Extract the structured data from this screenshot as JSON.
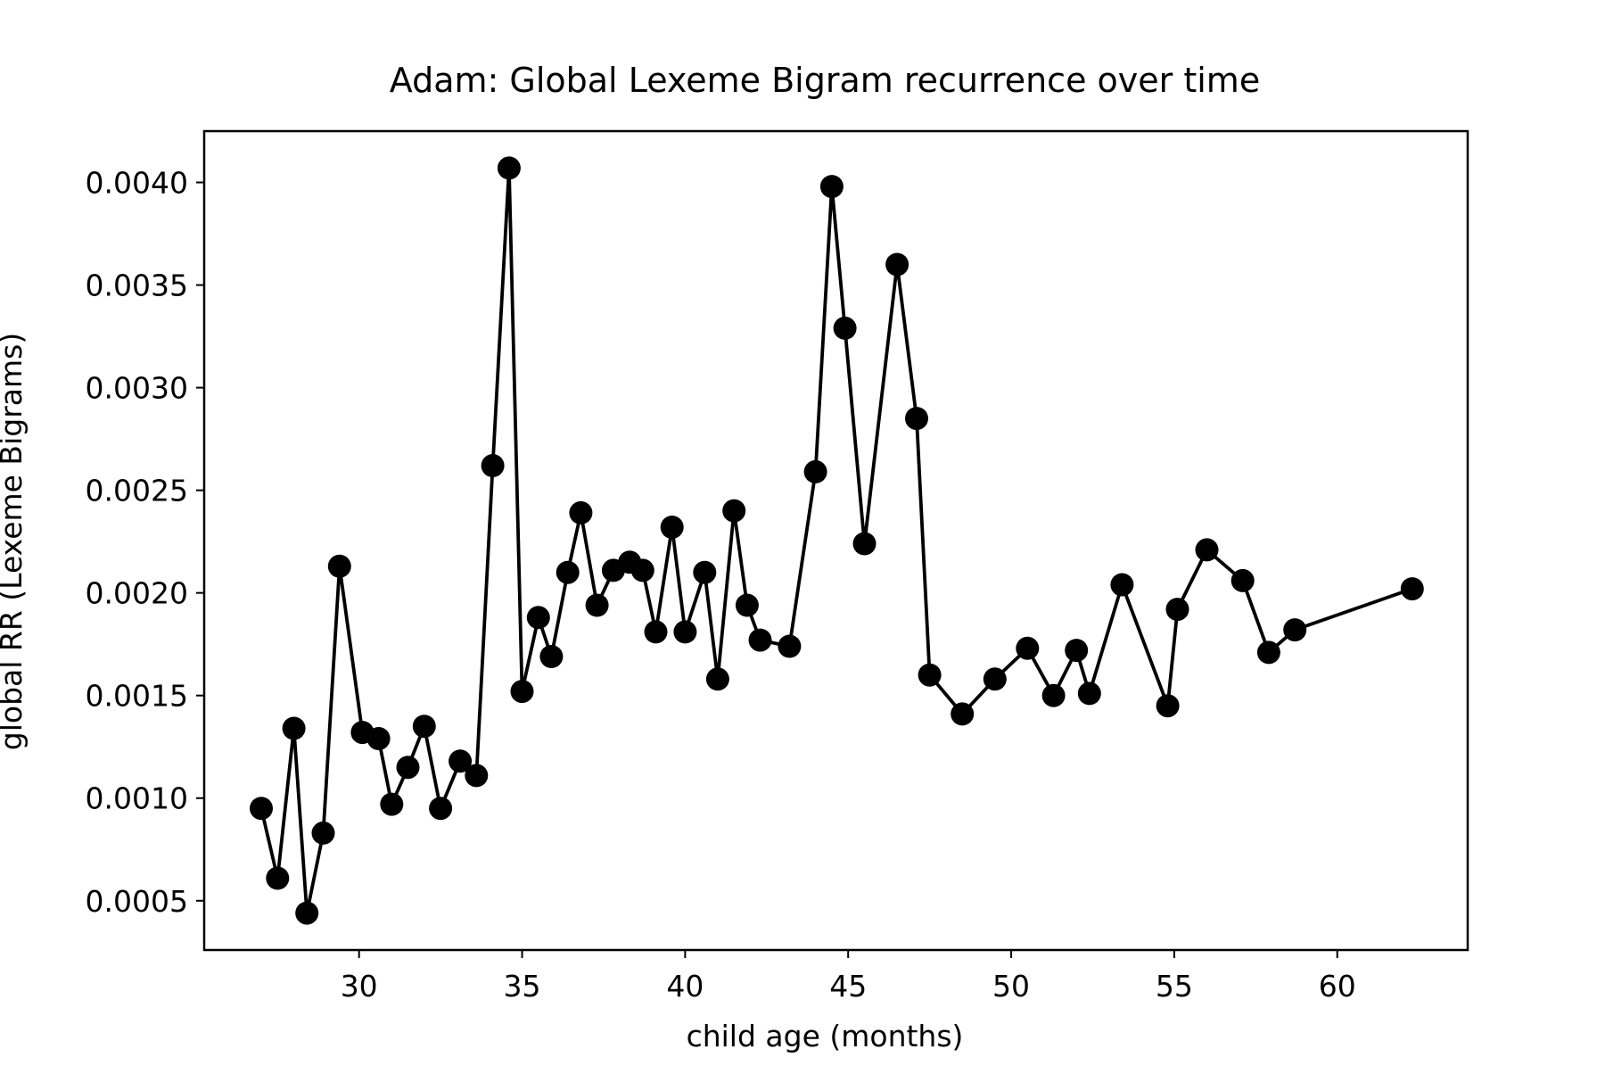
{
  "chart_data": {
    "type": "line",
    "title": "Adam: Global Lexeme Bigram recurrence over time",
    "xlabel": "child age (months)",
    "ylabel": "global RR (Lexeme Bigrams)",
    "xlim": [
      25.25,
      64.0
    ],
    "ylim": [
      0.00026,
      0.00425
    ],
    "x_ticks": [
      30,
      35,
      40,
      45,
      50,
      55,
      60
    ],
    "x_tick_labels": [
      "30",
      "35",
      "40",
      "45",
      "50",
      "55",
      "60"
    ],
    "y_ticks": [
      0.0005,
      0.001,
      0.0015,
      0.002,
      0.0025,
      0.003,
      0.0035,
      0.004
    ],
    "y_tick_labels": [
      "0.0005",
      "0.0010",
      "0.0015",
      "0.0020",
      "0.0025",
      "0.0030",
      "0.0035",
      "0.0040"
    ],
    "grid": false,
    "line_color": "#000000",
    "marker": "circle",
    "series": [
      {
        "x": [
          27.0,
          27.5,
          28.0,
          28.4,
          28.9,
          29.4,
          30.1,
          30.6,
          31.0,
          31.5,
          32.0,
          32.5,
          33.1,
          33.6,
          34.1,
          34.6,
          35.0,
          35.5,
          35.9,
          36.4,
          36.8,
          37.3,
          37.8,
          38.3,
          38.7,
          39.1,
          39.6,
          40.0,
          40.6,
          41.0,
          41.5,
          41.9,
          42.3,
          43.2,
          44.0,
          44.5,
          44.9,
          45.5,
          46.5,
          47.1,
          47.5,
          48.5,
          49.5,
          50.5,
          51.3,
          52.0,
          52.4,
          53.4,
          54.8,
          55.1,
          56.0,
          57.1,
          57.9,
          58.7,
          62.3
        ],
        "values": [
          0.00095,
          0.00061,
          0.00134,
          0.00044,
          0.00083,
          0.00213,
          0.00132,
          0.00129,
          0.00097,
          0.00115,
          0.00135,
          0.00095,
          0.00118,
          0.00111,
          0.00262,
          0.00407,
          0.00152,
          0.00188,
          0.00169,
          0.0021,
          0.00239,
          0.00194,
          0.00211,
          0.00215,
          0.00211,
          0.00181,
          0.00232,
          0.00181,
          0.0021,
          0.00158,
          0.0024,
          0.00194,
          0.00177,
          0.00174,
          0.00259,
          0.00398,
          0.00329,
          0.00224,
          0.0036,
          0.00285,
          0.0016,
          0.00141,
          0.00158,
          0.00173,
          0.0015,
          0.00172,
          0.00151,
          0.00204,
          0.00145,
          0.00192,
          0.00221,
          0.00206,
          0.00171,
          0.00182,
          0.00202
        ]
      }
    ]
  }
}
